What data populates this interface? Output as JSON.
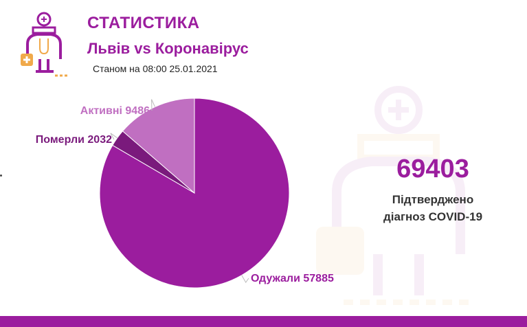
{
  "header": {
    "title": "СТАТИСТИКА",
    "subtitle": "Львів vs Коронавірус",
    "as_of": "Станом на 08:00 25.01.2021"
  },
  "summary": {
    "total": "69403",
    "caption_line1": "Підтверджено",
    "caption_line2": "діагноз COVID-19"
  },
  "colors": {
    "brand": "#9b1d9e",
    "active": "#c06fc1",
    "died": "#7a1a7c",
    "recovered": "#9b1d9e",
    "label_orange": "#f0a94a"
  },
  "chart_data": {
    "type": "pie",
    "title": "",
    "slices": [
      {
        "label": "Одужали 57885",
        "value": 57885,
        "color": "#9b1d9e",
        "label_color": "#9b1d9e"
      },
      {
        "label": "Померли 2032",
        "value": 2032,
        "color": "#7a1a7c",
        "label_color": "#7a1a7c"
      },
      {
        "label": "Активні 9486",
        "value": 9486,
        "color": "#c06fc1",
        "label_color": "#c06fc1"
      }
    ]
  }
}
